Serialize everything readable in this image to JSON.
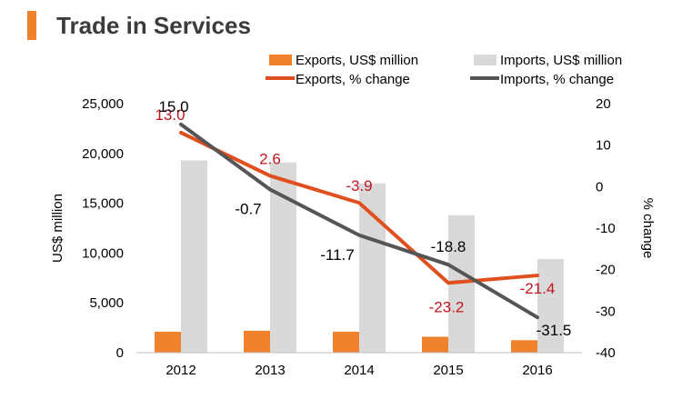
{
  "title": "Trade in Services",
  "colors": {
    "accent": "#f0822d",
    "exports_bar": "#f0822d",
    "imports_bar": "#d9d9d9",
    "exports_line": "#e0501e",
    "imports_line": "#555555",
    "exports_label": "#c0161e",
    "imports_label": "#000000",
    "title": "#3c3c3c"
  },
  "chart_data": {
    "type": "bar",
    "categories": [
      "2012",
      "2013",
      "2014",
      "2015",
      "2016"
    ],
    "ylabel": "US$ million",
    "y2label": "% change",
    "ylim": [
      0,
      25000
    ],
    "yticks": [
      "0",
      "5,000",
      "10,000",
      "15,000",
      "20,000",
      "25,000"
    ],
    "y2lim": [
      -40,
      20
    ],
    "y2ticks": [
      "-40",
      "-30",
      "-20",
      "-10",
      "0",
      "10",
      "20"
    ],
    "legend_position": "top",
    "grid": false,
    "series": [
      {
        "name": "Exports, US$ million",
        "type": "bar",
        "axis": "left",
        "values": [
          2100,
          2200,
          2100,
          1600,
          1250
        ]
      },
      {
        "name": "Imports, US$ million",
        "type": "bar",
        "axis": "left",
        "values": [
          19300,
          19100,
          17000,
          13800,
          9400
        ]
      },
      {
        "name": "Exports, % change",
        "type": "line",
        "axis": "right",
        "values": [
          13.0,
          2.6,
          -3.9,
          -23.2,
          -21.4
        ],
        "labels": [
          "13.0",
          "2.6",
          "-3.9",
          "-23.2",
          "-21.4"
        ]
      },
      {
        "name": "Imports, % change",
        "type": "line",
        "axis": "right",
        "values": [
          15.0,
          -0.7,
          -11.7,
          -18.8,
          -31.5
        ],
        "labels": [
          "15.0",
          "-0.7",
          "-11.7",
          "-18.8",
          "-31.5"
        ]
      }
    ]
  }
}
